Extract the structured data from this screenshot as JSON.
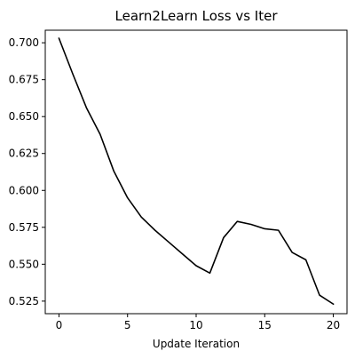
{
  "chart_data": {
    "type": "line",
    "title": "Learn2Learn Loss vs Iter",
    "xlabel": "Update Iteration",
    "ylabel": "",
    "xlim": [
      -1,
      21
    ],
    "ylim": [
      0.5165,
      0.7085
    ],
    "xticks": [
      0,
      5,
      10,
      15,
      20
    ],
    "yticks": [
      0.525,
      0.55,
      0.575,
      0.6,
      0.625,
      0.65,
      0.675,
      0.7
    ],
    "ytick_labels": [
      "0.525",
      "0.550",
      "0.575",
      "0.600",
      "0.625",
      "0.650",
      "0.675",
      "0.700"
    ],
    "xtick_labels": [
      "0",
      "5",
      "10",
      "15",
      "20"
    ],
    "grid": false,
    "legend": "none",
    "series": [
      {
        "color": "#000000",
        "x": [
          0,
          1,
          2,
          3,
          4,
          5,
          6,
          7,
          8,
          9,
          10,
          11,
          12,
          13,
          14,
          15,
          16,
          17,
          18,
          19,
          20
        ],
        "y": [
          0.703,
          0.679,
          0.656,
          0.638,
          0.613,
          0.595,
          0.582,
          0.573,
          0.565,
          0.557,
          0.549,
          0.544,
          0.568,
          0.579,
          0.577,
          0.574,
          0.573,
          0.558,
          0.553,
          0.529,
          0.523
        ]
      }
    ]
  }
}
